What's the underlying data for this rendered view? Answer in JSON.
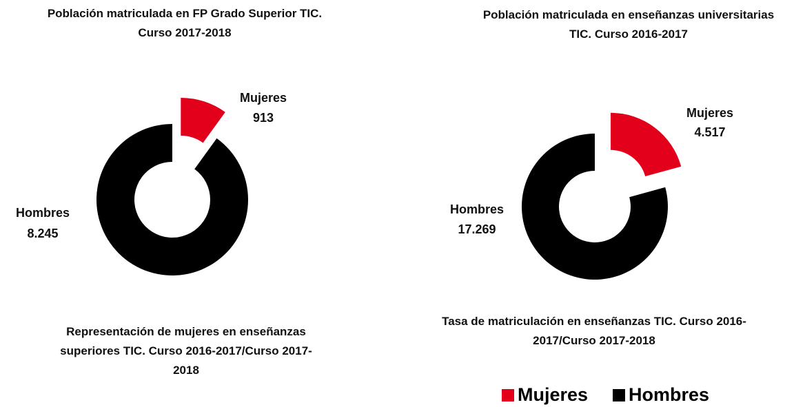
{
  "chart_data": [
    {
      "type": "pie",
      "title": "Población matriculada en FP Grado Superior TIC. Curso 2017-2018",
      "categories": [
        "Mujeres",
        "Hombres"
      ],
      "values": [
        913,
        8245
      ],
      "value_labels": [
        "913",
        "8.245"
      ],
      "colors": [
        "#e2001a",
        "#000000"
      ],
      "annotation": "Representación de mujeres en enseñanzas superiores TIC. Curso 2016-2017/Curso 2017-2018"
    },
    {
      "type": "pie",
      "title": "Población matriculada en enseñanzas universitarias TIC. Curso 2016-2017",
      "categories": [
        "Mujeres",
        "Hombres"
      ],
      "values": [
        4517,
        17269
      ],
      "value_labels": [
        "4.517",
        "17.269"
      ],
      "colors": [
        "#e2001a",
        "#000000"
      ],
      "legend": "bottom",
      "annotation": "Tasa de matriculación en enseñanzas TIC. Curso 2016-2017/Curso 2017-2018"
    }
  ]
}
